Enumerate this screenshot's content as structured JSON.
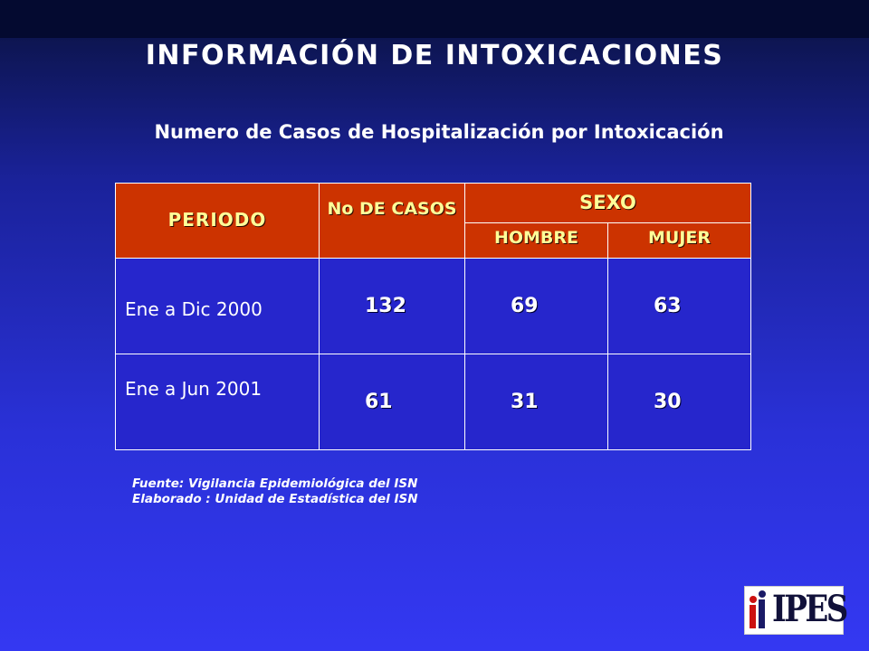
{
  "title": "INFORMACIÓN DE INTOXICACIONES",
  "subtitle": "Numero de Casos de Hospitalización por Intoxicación",
  "table": {
    "headers": {
      "periodo": "PERIODO",
      "casos": "No DE CASOS",
      "sexo": "SEXO",
      "hombre": "HOMBRE",
      "mujer": "MUJER"
    },
    "rows": [
      {
        "periodo": "Ene a Dic 2000",
        "casos": "132",
        "hombre": "69",
        "mujer": "63"
      },
      {
        "periodo": "Ene a Jun 2001",
        "casos": "61",
        "hombre": "31",
        "mujer": "30"
      }
    ]
  },
  "notes": {
    "fuente": "Fuente: Vigilancia Epidemiológica del ISN",
    "elaborado": "Elaborado : Unidad de Estadística del ISN"
  },
  "logo": {
    "text": "IPES"
  },
  "colors": {
    "header_bg": "#cc3300",
    "header_text": "#ffff99",
    "body_bg": "#2626cc",
    "background_top": "#060c3a",
    "background_bottom": "#3438f2"
  }
}
